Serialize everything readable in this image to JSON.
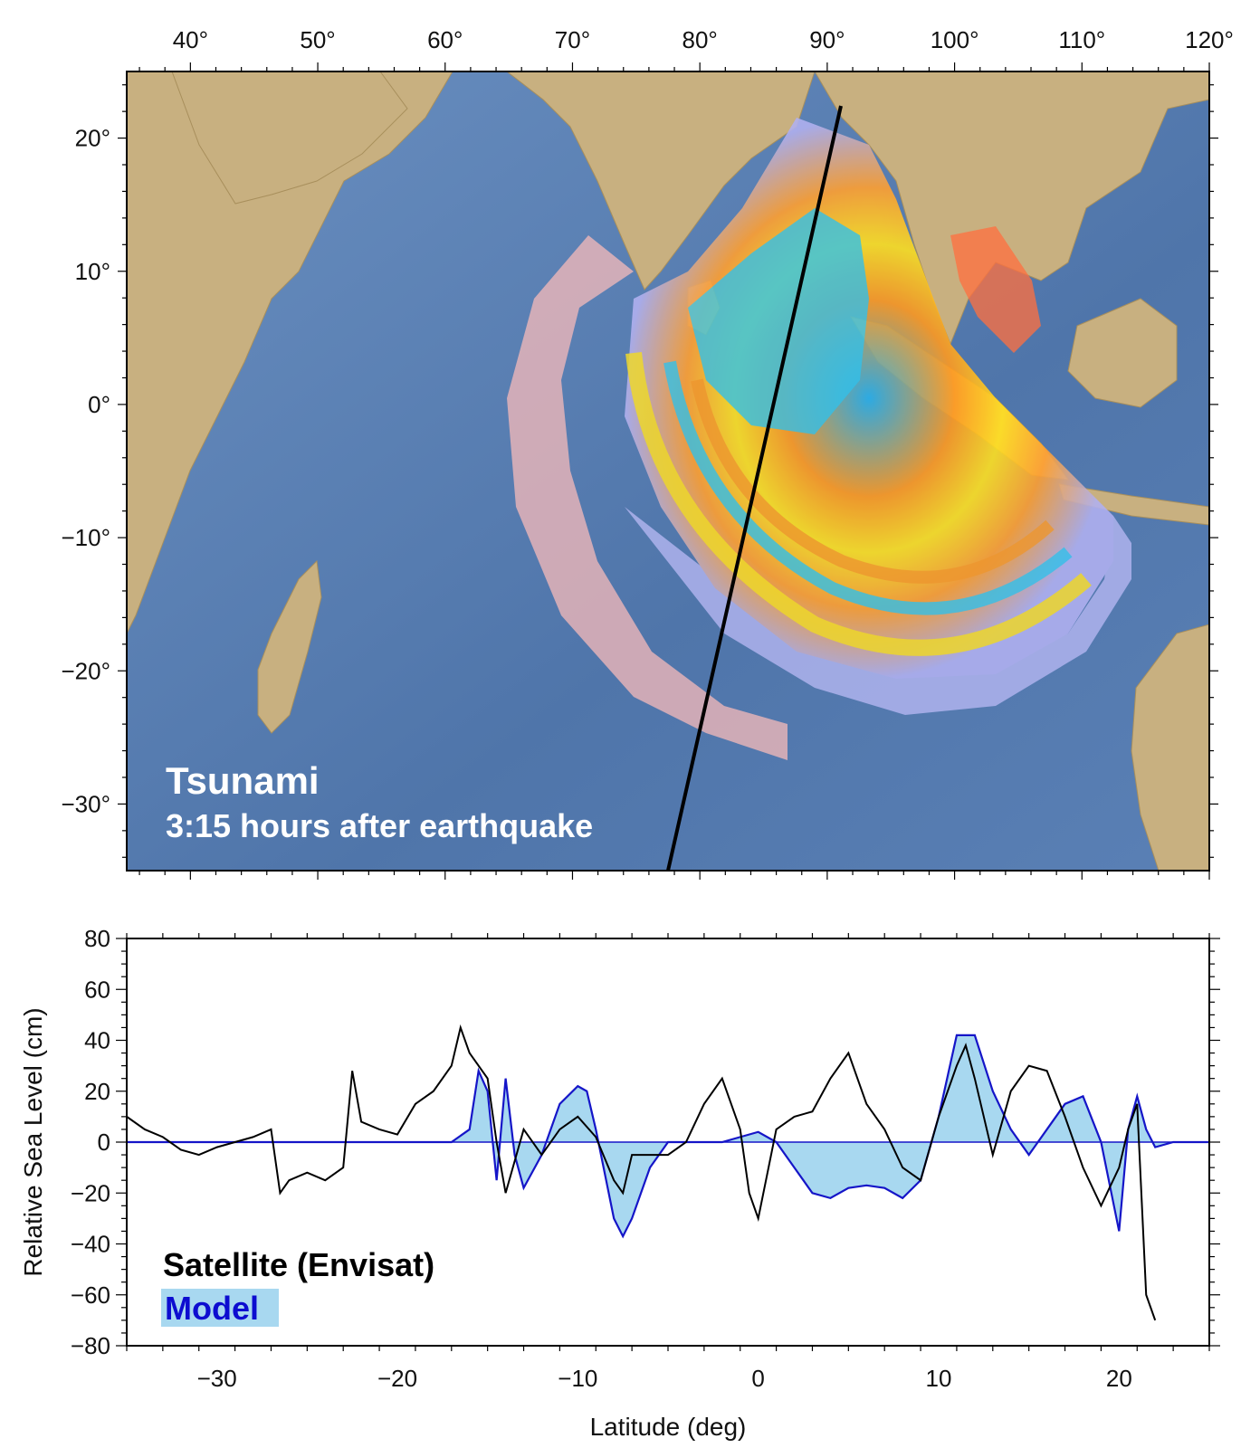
{
  "figure": {
    "map": {
      "title": "Tsunami",
      "subtitle": "3:15 hours after earthquake",
      "lon_ticks": [
        "40°",
        "50°",
        "60°",
        "70°",
        "80°",
        "90°",
        "100°",
        "110°",
        "120°"
      ],
      "lat_ticks": [
        "20°",
        "10°",
        "0°",
        "−10°",
        "−20°",
        "−30°"
      ]
    },
    "colors": {
      "ocean": "#5b7fb3",
      "land": "#c8b080",
      "satellite": "#000000",
      "model_line": "#1515c8",
      "model_fill": "#a8d8f0",
      "legend_model_text": "#0d0dd0"
    }
  },
  "chart_data": {
    "type": "line",
    "xlabel": "Latitude (deg)",
    "ylabel": "Relative Sea Level (cm)",
    "xlim": [
      -35,
      25
    ],
    "ylim": [
      -80,
      80
    ],
    "x_ticks": [
      -30,
      -20,
      -10,
      0,
      10,
      20
    ],
    "x_tick_labels": [
      "−30",
      "−20",
      "−10",
      "0",
      "10",
      "20"
    ],
    "y_ticks": [
      80,
      60,
      40,
      20,
      0,
      -20,
      -40,
      -60,
      -80
    ],
    "y_tick_labels": [
      "80",
      "60",
      "40",
      "20",
      "0",
      "−20",
      "−40",
      "−60",
      "−80"
    ],
    "grid": false,
    "legend": {
      "placement": "bottom-left"
    },
    "series": [
      {
        "name": "Satellite (Envisat)",
        "color": "#000000",
        "x": [
          -35,
          -34,
          -33,
          -32,
          -31,
          -30,
          -29,
          -28,
          -27,
          -26.5,
          -26,
          -25,
          -24,
          -23,
          -22.5,
          -22,
          -21,
          -20,
          -19,
          -18,
          -17,
          -16.5,
          -16,
          -15,
          -14.5,
          -14,
          -13,
          -12,
          -11,
          -10,
          -9,
          -8,
          -7.5,
          -7,
          -6,
          -5,
          -4,
          -3,
          -2,
          -1,
          -0.5,
          0,
          1,
          2,
          3,
          4,
          5,
          6,
          7,
          8,
          9,
          10,
          11,
          11.5,
          12,
          13,
          14,
          15,
          16,
          17,
          18,
          19,
          20,
          20.5,
          21,
          21.5,
          22
        ],
        "y": [
          10,
          5,
          2,
          -3,
          -5,
          -2,
          0,
          2,
          5,
          -20,
          -15,
          -12,
          -15,
          -10,
          28,
          8,
          5,
          3,
          15,
          20,
          30,
          45,
          35,
          25,
          0,
          -20,
          5,
          -5,
          5,
          10,
          2,
          -15,
          -20,
          -5,
          -5,
          -5,
          0,
          15,
          25,
          5,
          -20,
          -30,
          5,
          10,
          12,
          25,
          35,
          15,
          5,
          -10,
          -15,
          10,
          30,
          38,
          25,
          -5,
          20,
          30,
          28,
          10,
          -10,
          -25,
          -10,
          5,
          15,
          -60,
          -70
        ]
      },
      {
        "name": "Model",
        "color": "#1515c8",
        "fill": "#a8d8f0",
        "x": [
          -35,
          -20,
          -17,
          -16,
          -15.5,
          -15,
          -14.5,
          -14,
          -13.5,
          -13,
          -12,
          -11,
          -10,
          -9.5,
          -9,
          -8,
          -7.5,
          -7,
          -6,
          -5,
          -4,
          -3,
          -2,
          -1,
          0,
          1,
          2,
          3,
          4,
          5,
          6,
          7,
          8,
          9,
          10,
          11,
          12,
          13,
          14,
          15,
          16,
          17,
          18,
          19,
          20,
          20.5,
          21,
          21.5,
          22,
          23,
          25
        ],
        "y": [
          0,
          0,
          0,
          5,
          28,
          20,
          -15,
          25,
          -5,
          -18,
          -5,
          15,
          22,
          20,
          5,
          -30,
          -37,
          -30,
          -10,
          0,
          0,
          0,
          0,
          2,
          4,
          0,
          -10,
          -20,
          -22,
          -18,
          -17,
          -18,
          -22,
          -15,
          10,
          42,
          42,
          20,
          5,
          -5,
          5,
          15,
          18,
          0,
          -35,
          5,
          18,
          5,
          -2,
          0,
          0
        ]
      }
    ]
  }
}
